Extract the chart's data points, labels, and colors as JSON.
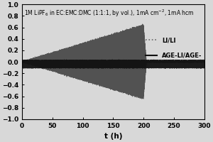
{
  "title": "1M LiPF$_6$ in EC:EMC:DMC (1:1:1, by vol.), 1mA cm$^{-2}$, 1mA hcm",
  "xlabel": "t (h)",
  "ylabel": "",
  "xlim": [
    0,
    300
  ],
  "ylim": [
    -1.0,
    1.0
  ],
  "xticks": [
    0,
    50,
    100,
    150,
    200,
    250,
    300
  ],
  "yticks": [
    -1.0,
    -0.8,
    -0.6,
    -0.4,
    -0.2,
    0.0,
    0.2,
    0.4,
    0.6,
    0.8,
    1.0
  ],
  "li_label": "LI/LI",
  "age_label": "AGE-LI/AGE-",
  "background_color": "#d8d8d8",
  "plot_bg_color": "#d8d8d8",
  "line_color_li": "#444444",
  "line_color_age": "#111111",
  "title_fontsize": 5.5,
  "axis_fontsize": 7.5,
  "tick_fontsize": 6.5,
  "legend_fontsize": 6.0
}
